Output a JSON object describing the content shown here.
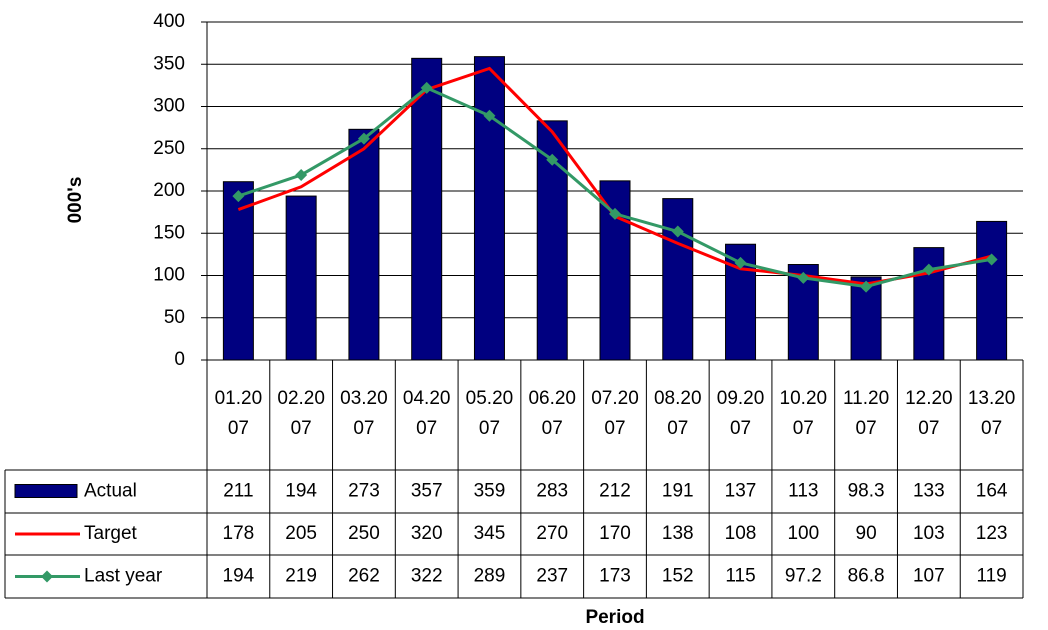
{
  "chart_data": {
    "type": "bar",
    "categories": [
      "01.2007",
      "02.2007",
      "03.2007",
      "04.2007",
      "05.2007",
      "06.2007",
      "07.2007",
      "08.2007",
      "09.2007",
      "10.2007",
      "11.2007",
      "12.2007",
      "13.2007"
    ],
    "series": [
      {
        "name": "Actual",
        "type": "bar",
        "color": "#000080",
        "values": [
          211,
          194,
          273,
          357,
          359,
          283,
          212,
          191,
          137,
          113,
          98.3,
          133,
          164
        ]
      },
      {
        "name": "Target",
        "type": "line",
        "color": "#ff0000",
        "values": [
          178,
          205,
          250,
          320,
          345,
          270,
          170,
          138,
          108,
          100,
          90,
          103,
          123
        ]
      },
      {
        "name": "Last year",
        "type": "line",
        "color": "#339966",
        "marker": "diamond",
        "values": [
          194,
          219,
          262,
          322,
          289,
          237,
          173,
          152,
          115,
          97.2,
          86.8,
          107,
          119
        ]
      }
    ],
    "ylabel": "000's",
    "xlabel": "Period",
    "ylim": [
      0,
      400
    ],
    "yticks": [
      0,
      50,
      100,
      150,
      200,
      250,
      300,
      350,
      400
    ],
    "grid": true,
    "data_table": true
  }
}
